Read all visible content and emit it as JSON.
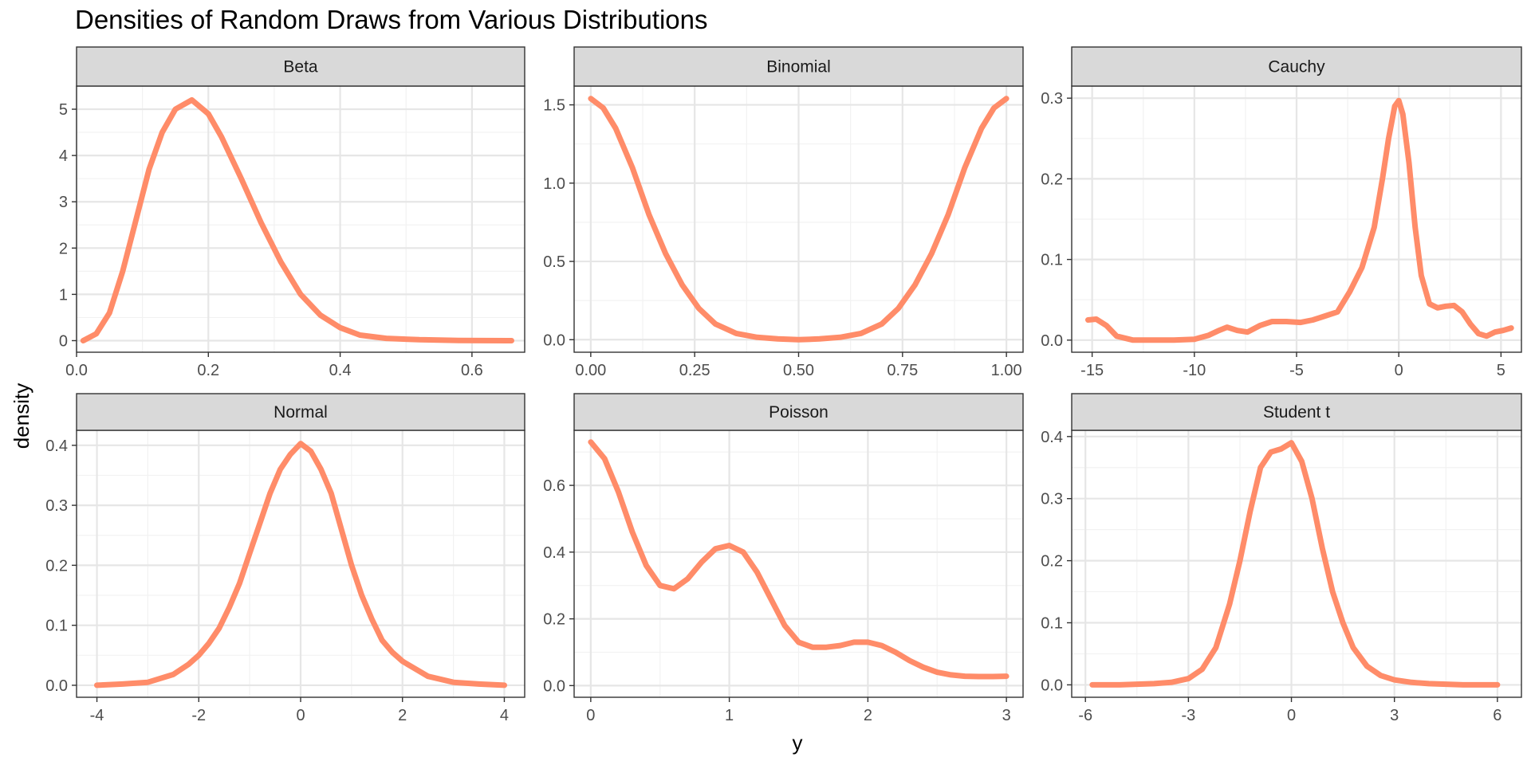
{
  "chart_data": {
    "type": "line",
    "title": "Densities of Random Draws from Various Distributions",
    "xlabel": "y",
    "ylabel": "density",
    "grid": true,
    "line_color": "#FF8C69",
    "panels": [
      {
        "name": "Beta",
        "xlim": [
          -0.0,
          0.68
        ],
        "ylim": [
          -0.25,
          5.5
        ],
        "xticks": [
          0.0,
          0.2,
          0.4,
          0.6
        ],
        "xtick_labels": [
          "0.0",
          "0.2",
          "0.4",
          "0.6"
        ],
        "yticks": [
          0,
          1,
          2,
          3,
          4,
          5
        ],
        "ytick_labels": [
          "0",
          "1",
          "2",
          "3",
          "4",
          "5"
        ],
        "series": [
          {
            "x": [
              0.01,
              0.03,
              0.05,
              0.07,
              0.09,
              0.11,
              0.13,
              0.15,
              0.175,
              0.2,
              0.22,
              0.25,
              0.28,
              0.31,
              0.34,
              0.37,
              0.4,
              0.43,
              0.47,
              0.52,
              0.58,
              0.66
            ],
            "y": [
              0.0,
              0.15,
              0.6,
              1.5,
              2.6,
              3.7,
              4.5,
              5.0,
              5.2,
              4.9,
              4.4,
              3.5,
              2.55,
              1.7,
              1.0,
              0.55,
              0.28,
              0.12,
              0.05,
              0.02,
              0.005,
              0.0
            ]
          }
        ]
      },
      {
        "name": "Binomial",
        "xlim": [
          -0.04,
          1.04
        ],
        "ylim": [
          -0.08,
          1.62
        ],
        "xticks": [
          0.0,
          0.25,
          0.5,
          0.75,
          1.0
        ],
        "xtick_labels": [
          "0.00",
          "0.25",
          "0.50",
          "0.75",
          "1.00"
        ],
        "yticks": [
          0.0,
          0.5,
          1.0,
          1.5
        ],
        "ytick_labels": [
          "0.0",
          "0.5",
          "1.0",
          "1.5"
        ],
        "series": [
          {
            "x": [
              0.0,
              0.03,
              0.06,
              0.1,
              0.14,
              0.18,
              0.22,
              0.26,
              0.3,
              0.35,
              0.4,
              0.45,
              0.5,
              0.55,
              0.6,
              0.65,
              0.7,
              0.74,
              0.78,
              0.82,
              0.86,
              0.9,
              0.94,
              0.97,
              1.0
            ],
            "y": [
              1.54,
              1.48,
              1.35,
              1.1,
              0.8,
              0.55,
              0.35,
              0.2,
              0.1,
              0.04,
              0.015,
              0.005,
              0.0,
              0.005,
              0.015,
              0.04,
              0.1,
              0.2,
              0.35,
              0.55,
              0.8,
              1.1,
              1.35,
              1.48,
              1.54
            ]
          }
        ]
      },
      {
        "name": "Cauchy",
        "xlim": [
          -16.0,
          6.0
        ],
        "ylim": [
          -0.015,
          0.315
        ],
        "xticks": [
          -15,
          -10,
          -5,
          0,
          5
        ],
        "xtick_labels": [
          "-15",
          "-10",
          "-5",
          "0",
          "5"
        ],
        "yticks": [
          0.0,
          0.1,
          0.2,
          0.3
        ],
        "ytick_labels": [
          "0.0",
          "0.1",
          "0.2",
          "0.3"
        ],
        "series": [
          {
            "x": [
              -15.2,
              -14.8,
              -14.3,
              -13.8,
              -13.0,
              -12.0,
              -11.0,
              -10.0,
              -9.3,
              -8.8,
              -8.4,
              -7.9,
              -7.4,
              -6.8,
              -6.2,
              -5.5,
              -4.8,
              -4.2,
              -3.6,
              -3.0,
              -2.4,
              -1.8,
              -1.2,
              -0.8,
              -0.5,
              -0.2,
              0.0,
              0.2,
              0.5,
              0.8,
              1.1,
              1.5,
              1.9,
              2.3,
              2.7,
              3.1,
              3.5,
              3.9,
              4.3,
              4.7,
              5.1,
              5.5
            ],
            "y": [
              0.025,
              0.026,
              0.018,
              0.005,
              0.0,
              0.0,
              0.0,
              0.001,
              0.006,
              0.012,
              0.016,
              0.012,
              0.01,
              0.018,
              0.023,
              0.023,
              0.022,
              0.025,
              0.03,
              0.035,
              0.06,
              0.09,
              0.14,
              0.2,
              0.25,
              0.29,
              0.297,
              0.28,
              0.22,
              0.14,
              0.08,
              0.045,
              0.04,
              0.042,
              0.043,
              0.035,
              0.02,
              0.008,
              0.005,
              0.01,
              0.012,
              0.015
            ]
          }
        ]
      },
      {
        "name": "Normal",
        "xlim": [
          -4.4,
          4.4
        ],
        "ylim": [
          -0.02,
          0.425
        ],
        "xticks": [
          -4,
          -2,
          0,
          2,
          4
        ],
        "xtick_labels": [
          "-4",
          "-2",
          "0",
          "2",
          "4"
        ],
        "yticks": [
          0.0,
          0.1,
          0.2,
          0.3,
          0.4
        ],
        "ytick_labels": [
          "0.0",
          "0.1",
          "0.2",
          "0.3",
          "0.4"
        ],
        "series": [
          {
            "x": [
              -4.0,
              -3.5,
              -3.0,
              -2.5,
              -2.2,
              -2.0,
              -1.8,
              -1.6,
              -1.4,
              -1.2,
              -1.0,
              -0.8,
              -0.6,
              -0.4,
              -0.2,
              0.0,
              0.2,
              0.4,
              0.6,
              0.8,
              1.0,
              1.2,
              1.4,
              1.6,
              1.8,
              2.0,
              2.2,
              2.5,
              3.0,
              3.5,
              4.0
            ],
            "y": [
              0.0,
              0.002,
              0.005,
              0.018,
              0.035,
              0.05,
              0.07,
              0.095,
              0.13,
              0.17,
              0.22,
              0.27,
              0.32,
              0.36,
              0.385,
              0.403,
              0.39,
              0.36,
              0.32,
              0.26,
              0.2,
              0.15,
              0.11,
              0.075,
              0.055,
              0.04,
              0.03,
              0.015,
              0.005,
              0.002,
              0.0
            ]
          }
        ]
      },
      {
        "name": "Poisson",
        "xlim": [
          -0.12,
          3.12
        ],
        "ylim": [
          -0.035,
          0.765
        ],
        "xticks": [
          0,
          1,
          2,
          3
        ],
        "xtick_labels": [
          "0",
          "1",
          "2",
          "3"
        ],
        "yticks": [
          0.0,
          0.2,
          0.4,
          0.6
        ],
        "ytick_labels": [
          "0.0",
          "0.2",
          "0.4",
          "0.6"
        ],
        "series": [
          {
            "x": [
              0.0,
              0.1,
              0.2,
              0.3,
              0.4,
              0.5,
              0.6,
              0.7,
              0.8,
              0.9,
              1.0,
              1.1,
              1.2,
              1.3,
              1.4,
              1.5,
              1.6,
              1.7,
              1.8,
              1.9,
              2.0,
              2.1,
              2.2,
              2.3,
              2.4,
              2.5,
              2.6,
              2.7,
              2.8,
              2.9,
              3.0
            ],
            "y": [
              0.73,
              0.68,
              0.58,
              0.46,
              0.36,
              0.3,
              0.29,
              0.32,
              0.37,
              0.41,
              0.42,
              0.4,
              0.34,
              0.26,
              0.18,
              0.13,
              0.115,
              0.115,
              0.12,
              0.13,
              0.13,
              0.12,
              0.1,
              0.075,
              0.055,
              0.04,
              0.032,
              0.028,
              0.027,
              0.027,
              0.028
            ]
          }
        ]
      },
      {
        "name": "Student t",
        "xlim": [
          -6.4,
          6.7
        ],
        "ylim": [
          -0.02,
          0.41
        ],
        "xticks": [
          -6,
          -3,
          0,
          3,
          6
        ],
        "xtick_labels": [
          "-6",
          "-3",
          "0",
          "3",
          "6"
        ],
        "yticks": [
          0.0,
          0.1,
          0.2,
          0.3,
          0.4
        ],
        "ytick_labels": [
          "0.0",
          "0.1",
          "0.2",
          "0.3",
          "0.4"
        ],
        "series": [
          {
            "x": [
              -5.8,
              -5.0,
              -4.0,
              -3.5,
              -3.0,
              -2.6,
              -2.2,
              -1.8,
              -1.5,
              -1.2,
              -0.9,
              -0.6,
              -0.3,
              0.0,
              0.3,
              0.6,
              0.9,
              1.2,
              1.5,
              1.8,
              2.2,
              2.6,
              3.0,
              3.5,
              4.0,
              5.0,
              6.0
            ],
            "y": [
              0.0,
              0.0,
              0.002,
              0.004,
              0.01,
              0.025,
              0.06,
              0.13,
              0.2,
              0.28,
              0.35,
              0.375,
              0.38,
              0.39,
              0.36,
              0.3,
              0.22,
              0.15,
              0.1,
              0.06,
              0.03,
              0.015,
              0.008,
              0.004,
              0.002,
              0.0,
              0.0
            ]
          }
        ]
      }
    ]
  }
}
